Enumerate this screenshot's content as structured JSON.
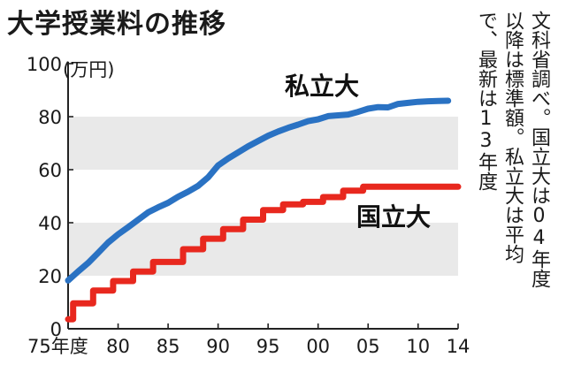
{
  "title": "大学授業料の推移",
  "note": [
    "文科省調べ。国立大は04年度",
    "以降は標準額。私立大は平均",
    "で、最新は13年度"
  ],
  "chart_data": {
    "type": "line",
    "title": "大学授業料の推移",
    "unit_label": "(万円)",
    "xlabel": "",
    "ylabel": "",
    "xlim": [
      1975,
      2014
    ],
    "ylim": [
      0,
      100
    ],
    "y_ticks": [
      "0",
      "20",
      "40",
      "60",
      "80",
      "100"
    ],
    "x_ticks": [
      "75年度",
      "80",
      "85",
      "90",
      "95",
      "00",
      "05",
      "10",
      "14"
    ],
    "x_tick_values": [
      1975,
      1980,
      1985,
      1990,
      1995,
      2000,
      2005,
      2010,
      2014
    ],
    "grid": "alternating gray bands at 20–40 and 60–80",
    "series": [
      {
        "name": "私立大",
        "color": "#2a72c3",
        "step": false,
        "x": [
          1975,
          1976,
          1977,
          1978,
          1979,
          1980,
          1981,
          1982,
          1983,
          1984,
          1985,
          1986,
          1987,
          1988,
          1989,
          1990,
          1991,
          1992,
          1993,
          1994,
          1995,
          1996,
          1997,
          1998,
          1999,
          2000,
          2001,
          2002,
          2003,
          2004,
          2005,
          2006,
          2007,
          2008,
          2009,
          2010,
          2011,
          2012,
          2013
        ],
        "values": [
          18.2,
          21.6,
          24.8,
          28.6,
          32.5,
          35.6,
          38.3,
          41.1,
          43.9,
          45.8,
          47.5,
          49.8,
          51.7,
          53.9,
          57.1,
          61.6,
          64.2,
          66.5,
          68.8,
          70.8,
          72.8,
          74.4,
          75.8,
          77.0,
          78.3,
          79.0,
          80.2,
          80.5,
          80.8,
          81.8,
          83.0,
          83.6,
          83.5,
          84.8,
          85.2,
          85.6,
          85.8,
          85.9,
          86.0
        ]
      },
      {
        "name": "国立大",
        "color": "#e8281e",
        "step": true,
        "x": [
          1975,
          1976,
          1977,
          1978,
          1979,
          1980,
          1981,
          1982,
          1983,
          1984,
          1985,
          1986,
          1987,
          1988,
          1989,
          1990,
          1991,
          1992,
          1993,
          1994,
          1995,
          1996,
          1997,
          1998,
          1999,
          2000,
          2001,
          2002,
          2003,
          2004,
          2005,
          2006,
          2007,
          2008,
          2009,
          2010,
          2011,
          2012,
          2013,
          2014
        ],
        "values": [
          3.6,
          9.6,
          9.6,
          14.4,
          14.4,
          18.0,
          18.0,
          21.6,
          21.6,
          25.2,
          25.2,
          25.2,
          30.0,
          30.0,
          33.96,
          33.96,
          37.56,
          37.56,
          41.16,
          41.16,
          44.76,
          44.76,
          46.92,
          46.92,
          47.88,
          47.88,
          49.68,
          49.68,
          52.08,
          52.08,
          53.58,
          53.58,
          53.58,
          53.58,
          53.58,
          53.58,
          53.58,
          53.58,
          53.58,
          53.58
        ]
      }
    ]
  }
}
